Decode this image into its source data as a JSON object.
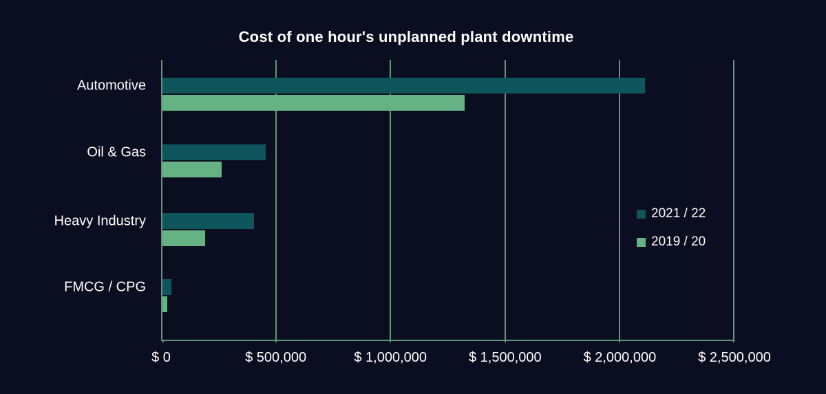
{
  "chart": {
    "colors": {
      "background": "#0b0d20",
      "grid": "#5e9878",
      "text": "#ffffff",
      "series_2021_22": "#0e565c",
      "series_2019_20": "#65b384"
    }
  },
  "chart_data": {
    "type": "bar",
    "orientation": "horizontal",
    "title": "Cost of one hour's unplanned plant downtime",
    "categories": [
      "Automotive",
      "Oil & Gas",
      "Heavy Industry",
      "FMCG / CPG"
    ],
    "series": [
      {
        "name": "2021 / 22",
        "color": "#0e565c",
        "values": [
          2110000,
          450000,
          400000,
          39000
        ]
      },
      {
        "name": "2019 / 20",
        "color": "#65b384",
        "values": [
          1320000,
          260000,
          187000,
          21000
        ]
      }
    ],
    "xlim": [
      0,
      2500000
    ],
    "x_tick_values": [
      0,
      500000,
      1000000,
      1500000,
      2000000,
      2500000
    ],
    "x_tick_labels": [
      "$ 0",
      "$ 500,000",
      "$ 1,000,000",
      "$ 1,500,000",
      "$ 2,000,000",
      "$ 2,500,000"
    ],
    "xlabel": "",
    "ylabel": "",
    "grid": true,
    "legend_position": "inside-right"
  }
}
